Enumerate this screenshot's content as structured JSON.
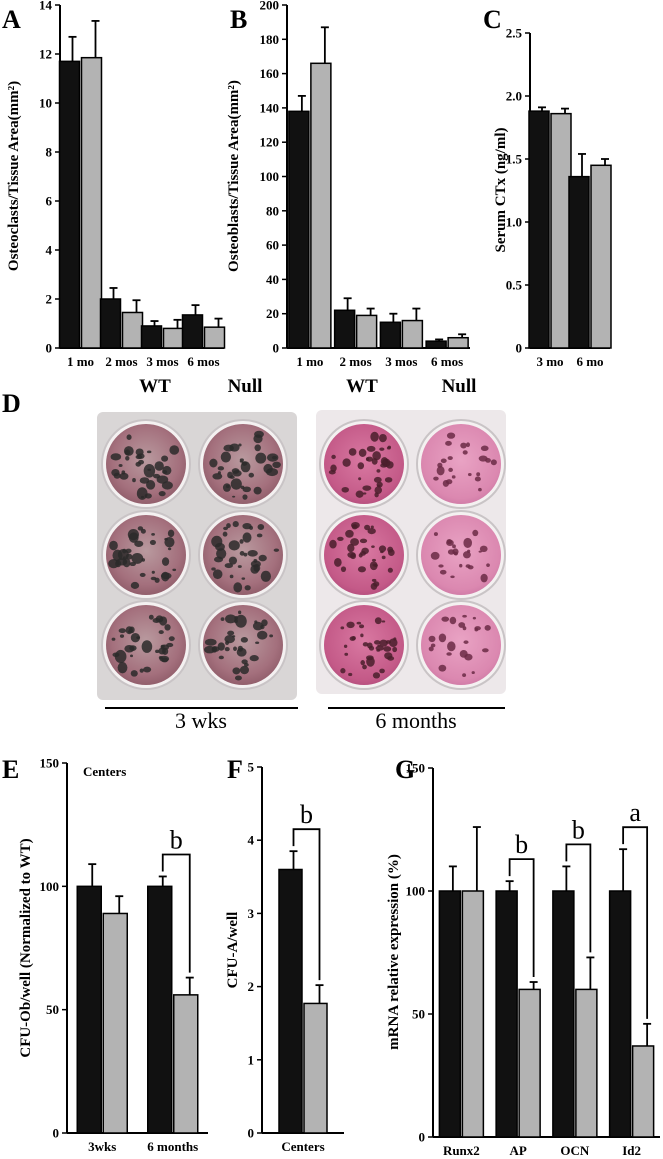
{
  "colors": {
    "wt": "#111111",
    "null": "#b3b3b3",
    "axis": "#000000"
  },
  "panel_letters": {
    "A": "A",
    "B": "B",
    "C": "C",
    "D": "D",
    "E": "E",
    "F": "F",
    "G": "G"
  },
  "panel_d": {
    "groups": [
      {
        "label": "WT",
        "plate_tint": "speckled-dark"
      },
      {
        "label": "Null",
        "plate_tint": "speckled-dark"
      },
      {
        "label": "WT",
        "plate_tint": "pink-dark"
      },
      {
        "label": "Null",
        "plate_tint": "pink-light"
      }
    ],
    "captions": [
      "3 wks",
      "6 months"
    ]
  },
  "chart_data": [
    {
      "panel": "A",
      "type": "bar",
      "categories": [
        "1 mo",
        "2 mos",
        "3 mos",
        "6 mos"
      ],
      "series": [
        {
          "values": [
            11.7,
            2.0,
            0.9,
            1.35
          ],
          "errors": [
            1.0,
            0.45,
            0.2,
            0.4
          ]
        },
        {
          "values": [
            11.85,
            1.45,
            0.8,
            0.85
          ],
          "errors": [
            1.5,
            0.5,
            0.35,
            0.35
          ]
        }
      ],
      "ylabel": "Osteoclasts/Tissue Area(mm²)",
      "ylim": [
        0,
        14
      ],
      "yticks": [
        0,
        2,
        4,
        6,
        8,
        10,
        12,
        14
      ]
    },
    {
      "panel": "B",
      "type": "bar",
      "categories": [
        "1 mo",
        "2 mos",
        "3 mos",
        "6 mos"
      ],
      "series": [
        {
          "values": [
            138,
            22,
            15,
            4
          ],
          "errors": [
            9,
            7,
            5,
            1
          ]
        },
        {
          "values": [
            166,
            19,
            16,
            6
          ],
          "errors": [
            21,
            4,
            7,
            2
          ]
        }
      ],
      "ylabel": "Osteoblasts/Tissue Area(mm²)",
      "ylim": [
        0,
        200
      ],
      "yticks": [
        0,
        20,
        40,
        60,
        80,
        100,
        120,
        140,
        160,
        180,
        200
      ]
    },
    {
      "panel": "C",
      "type": "bar",
      "categories": [
        "3 mo",
        "6 mo"
      ],
      "series": [
        {
          "values": [
            1.88,
            1.36
          ],
          "errors": [
            0.03,
            0.18
          ]
        },
        {
          "values": [
            1.86,
            1.45
          ],
          "errors": [
            0.04,
            0.05
          ]
        }
      ],
      "ylabel": "Serum CTx (ng/ml)",
      "ylim": [
        0,
        2.5
      ],
      "yticks": [
        "0",
        "0.5",
        "1.0",
        "1.5",
        "2.0",
        "2.5"
      ]
    },
    {
      "panel": "E",
      "type": "bar",
      "annotation": "Centers",
      "categories": [
        "3wks",
        "6 months"
      ],
      "series": [
        {
          "values": [
            100,
            100
          ],
          "errors": [
            9,
            4
          ]
        },
        {
          "values": [
            89,
            56
          ],
          "errors": [
            7,
            7
          ]
        }
      ],
      "ylabel": "CFU-Ob/well (Normalized to WT)",
      "ylim": [
        0,
        150
      ],
      "yticks": [
        "0",
        "50",
        "100",
        "150"
      ],
      "significance": [
        {
          "category": 1,
          "label": "b"
        }
      ]
    },
    {
      "panel": "F",
      "type": "bar",
      "categories": [
        "Centers"
      ],
      "series": [
        {
          "values": [
            3.6
          ],
          "errors": [
            0.25
          ]
        },
        {
          "values": [
            1.77
          ],
          "errors": [
            0.25
          ]
        }
      ],
      "ylabel": "CFU-A/well",
      "ylim": [
        0,
        5
      ],
      "yticks": [
        "0",
        "1",
        "2",
        "3",
        "4",
        "5"
      ],
      "significance": [
        {
          "category": 0,
          "label": "b"
        }
      ]
    },
    {
      "panel": "G",
      "type": "bar",
      "categories": [
        "Runx2",
        "AP",
        "OCN",
        "Id2"
      ],
      "series": [
        {
          "values": [
            100,
            100,
            100,
            100
          ],
          "errors": [
            10,
            4,
            10,
            17
          ]
        },
        {
          "values": [
            100,
            60,
            60,
            37
          ],
          "errors": [
            26,
            3,
            13,
            9
          ]
        }
      ],
      "ylabel": "mRNA relative expression (%)",
      "ylim": [
        0,
        150
      ],
      "yticks": [
        "0",
        "50",
        "100",
        "150"
      ],
      "significance": [
        {
          "category": 1,
          "label": "b"
        },
        {
          "category": 2,
          "label": "b"
        },
        {
          "category": 3,
          "label": "a"
        }
      ]
    }
  ]
}
